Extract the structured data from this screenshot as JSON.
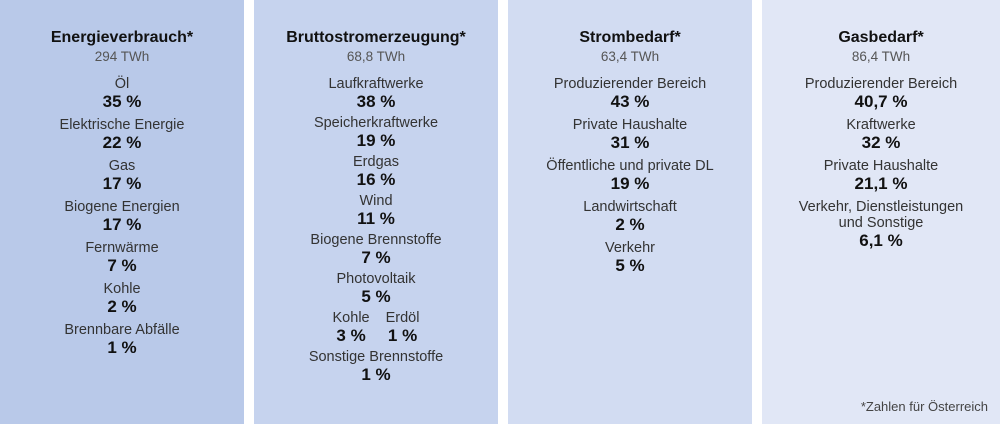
{
  "cards": [
    {
      "title": "Energieverbrauch*",
      "total": "294 TWh",
      "items": [
        {
          "label": "Öl",
          "value": "35 %"
        },
        {
          "label": "Elektrische Energie",
          "value": "22 %"
        },
        {
          "label": "Gas",
          "value": "17 %"
        },
        {
          "label": "Biogene Energien",
          "value": "17 %"
        },
        {
          "label": "Fernwärme",
          "value": "7 %"
        },
        {
          "label": "Kohle",
          "value": "2 %"
        },
        {
          "label": "Brennbare Abfälle",
          "value": "1 %"
        }
      ]
    },
    {
      "title": "Bruttostromerzeugung*",
      "total": "68,8 TWh",
      "items": [
        {
          "label": "Laufkraftwerke",
          "value": "38 %"
        },
        {
          "label": "Speicherkraftwerke",
          "value": "19 %"
        },
        {
          "label": "Erdgas",
          "value": "16 %"
        },
        {
          "label": "Wind",
          "value": "11 %"
        },
        {
          "label": "Biogene Brennstoffe",
          "value": "7 %"
        },
        {
          "label": "Photovoltaik",
          "value": "5 %"
        }
      ],
      "pair": [
        {
          "label": "Kohle",
          "value": "3 %"
        },
        {
          "label": "Erdöl",
          "value": "1 %"
        }
      ],
      "last": {
        "label": "Sonstige Brennstoffe",
        "value": "1 %"
      }
    },
    {
      "title": "Strombedarf*",
      "total": "63,4 TWh",
      "items": [
        {
          "label": "Produzierender Bereich",
          "value": "43 %"
        },
        {
          "label": "Private Haushalte",
          "value": "31 %"
        },
        {
          "label": "Öffentliche und private DL",
          "value": "19 %"
        },
        {
          "label": "Landwirtschaft",
          "value": "2 %"
        },
        {
          "label": "Verkehr",
          "value": "5 %"
        }
      ]
    },
    {
      "title": "Gasbedarf*",
      "total": "86,4 TWh",
      "items": [
        {
          "label": "Produzierender Bereich",
          "value": "40,7 %"
        },
        {
          "label": "Kraftwerke",
          "value": "32 %"
        },
        {
          "label": "Private Haushalte",
          "value": "21,1 %"
        },
        {
          "label": "Verkehr, Dienstleistungen und Sonstige",
          "value": "6,1 %"
        }
      ]
    }
  ],
  "footnote": "*Zahlen für Österreich"
}
